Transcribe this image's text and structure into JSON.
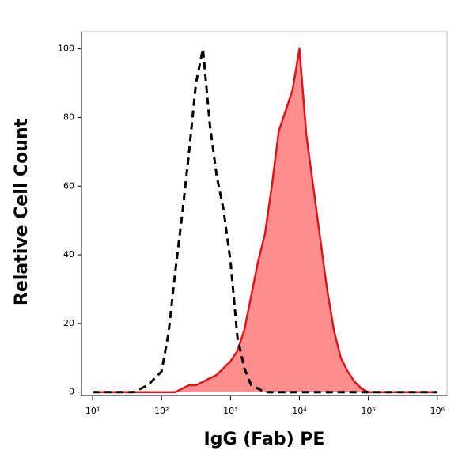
{
  "chart_data": {
    "type": "histogram-overlay",
    "xlabel": "IgG (Fab) PE",
    "ylabel": "Relative Cell Count",
    "xscale": "log",
    "xlim": [
      6.9,
      1380000
    ],
    "ylim": [
      -1,
      105
    ],
    "xticks": [
      {
        "value": 10,
        "label": "10¹"
      },
      {
        "value": 100,
        "label": "10²"
      },
      {
        "value": 1000,
        "label": "10³"
      },
      {
        "value": 10000,
        "label": "10⁴"
      },
      {
        "value": 100000,
        "label": "10⁵"
      },
      {
        "value": 1000000,
        "label": "10⁶"
      }
    ],
    "yticks": [
      0,
      20,
      40,
      60,
      80,
      100
    ],
    "x": [
      10,
      12.6,
      15.8,
      20,
      25.1,
      31.6,
      39.8,
      50.1,
      63.1,
      79.4,
      100,
      126,
      158,
      200,
      251,
      316,
      398,
      501,
      631,
      794,
      1000,
      1259,
      1585,
      1995,
      2512,
      3162,
      3981,
      5012,
      6310,
      7943,
      10000,
      12589,
      15849,
      19953,
      25119,
      31623,
      39811,
      50119,
      63096,
      79433,
      100000,
      125893,
      158489,
      199526,
      251189,
      316228,
      398107,
      501187,
      630957,
      794328,
      1000000
    ],
    "series": [
      {
        "color": "#e0141a",
        "fill": "#ff8f8f",
        "style": "solid",
        "values": [
          0,
          0,
          0,
          0,
          0,
          0,
          0,
          0,
          0,
          0,
          0,
          0,
          0,
          1,
          2,
          2,
          3,
          4,
          5,
          7,
          9,
          12,
          18,
          28,
          38,
          46,
          60,
          76,
          82,
          88,
          100,
          75,
          60,
          45,
          30,
          18,
          10,
          6,
          3,
          1,
          0,
          0,
          0,
          0,
          0,
          0,
          0,
          0,
          0,
          0,
          0
        ]
      },
      {
        "color": "#000000",
        "style": "dashed",
        "values": [
          0,
          0,
          0,
          0,
          0,
          0,
          0,
          1,
          2,
          4,
          6,
          17,
          35,
          52,
          70,
          90,
          100,
          78,
          63,
          53,
          38,
          16,
          7,
          2,
          1,
          0,
          0,
          0,
          0,
          0,
          0,
          0,
          0,
          0,
          0,
          0,
          0,
          0,
          0,
          0,
          0,
          0,
          0,
          0,
          0,
          0,
          0,
          0,
          0,
          0,
          0
        ]
      }
    ]
  }
}
